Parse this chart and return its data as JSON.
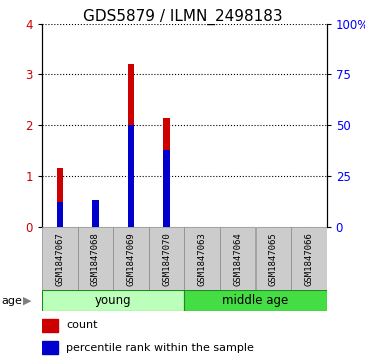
{
  "title": "GDS5879 / ILMN_2498183",
  "samples": [
    "GSM1847067",
    "GSM1847068",
    "GSM1847069",
    "GSM1847070",
    "GSM1847063",
    "GSM1847064",
    "GSM1847065",
    "GSM1847066"
  ],
  "count_values": [
    1.15,
    0.08,
    3.2,
    2.15,
    0.0,
    0.0,
    0.0,
    0.0
  ],
  "percentile_values": [
    12,
    13,
    50,
    38,
    0.0,
    0.0,
    0.0,
    0.0
  ],
  "ylim_left": [
    0,
    4
  ],
  "ylim_right": [
    0,
    100
  ],
  "yticks_left": [
    0,
    1,
    2,
    3,
    4
  ],
  "yticks_right": [
    0,
    25,
    50,
    75,
    100
  ],
  "ytick_labels_right": [
    "0",
    "25",
    "50",
    "75",
    "100%"
  ],
  "groups": [
    {
      "label": "young",
      "start": 0,
      "end": 4,
      "color": "#bbffbb"
    },
    {
      "label": "middle age",
      "start": 4,
      "end": 8,
      "color": "#44dd44"
    }
  ],
  "bar_color_count": "#cc0000",
  "bar_color_percentile": "#0000cc",
  "bar_width": 0.18,
  "sample_box_color": "#cccccc",
  "legend_count_label": "count",
  "legend_percentile_label": "percentile rank within the sample",
  "age_label": "age",
  "title_fontsize": 11,
  "tick_fontsize": 8.5,
  "sample_fontsize": 6.5,
  "group_fontsize": 8.5,
  "legend_fontsize": 8
}
